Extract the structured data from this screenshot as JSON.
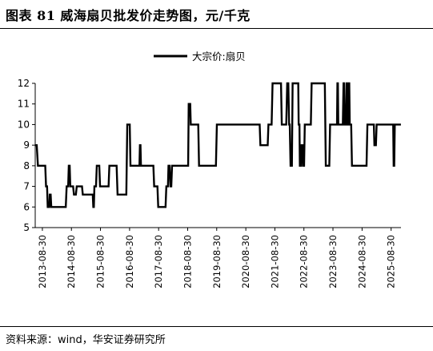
{
  "header": {
    "title": "图表 81 威海扇贝批发价走势图，元/千克"
  },
  "footer": {
    "source": "资料来源：wind，华安证券研究所"
  },
  "chart_data": {
    "type": "line",
    "title": "",
    "xlabel": "",
    "ylabel": "",
    "ylim": [
      5,
      12
    ],
    "yticks": [
      5,
      6,
      7,
      8,
      9,
      10,
      11,
      12
    ],
    "xlim": [
      "2013-06-01",
      "2026-01-01"
    ],
    "xticks": [
      "2013-08-30",
      "2014-08-30",
      "2015-08-30",
      "2016-08-30",
      "2017-08-30",
      "2018-08-30",
      "2019-08-30",
      "2020-08-30",
      "2021-08-30",
      "2022-08-30",
      "2023-08-30",
      "2024-08-30",
      "2025-08-30"
    ],
    "grid": false,
    "legend": {
      "position": "top-center"
    },
    "series": [
      {
        "name": "大宗价:扇贝",
        "color": "#000000",
        "points": [
          [
            "2013-06-01",
            9.0
          ],
          [
            "2013-06-20",
            9.0
          ],
          [
            "2013-07-05",
            8.0
          ],
          [
            "2013-10-05",
            8.0
          ],
          [
            "2013-10-15",
            7.0
          ],
          [
            "2013-10-28",
            7.0
          ],
          [
            "2013-11-05",
            6.0
          ],
          [
            "2013-11-25",
            6.0
          ],
          [
            "2013-12-01",
            6.6
          ],
          [
            "2013-12-12",
            6.6
          ],
          [
            "2013-12-20",
            6.0
          ],
          [
            "2014-06-20",
            6.0
          ],
          [
            "2014-07-01",
            7.0
          ],
          [
            "2014-07-20",
            7.0
          ],
          [
            "2014-07-28",
            8.0
          ],
          [
            "2014-08-08",
            8.0
          ],
          [
            "2014-08-16",
            7.0
          ],
          [
            "2014-09-20",
            7.0
          ],
          [
            "2014-10-01",
            6.6
          ],
          [
            "2014-10-25",
            6.6
          ],
          [
            "2014-11-05",
            7.0
          ],
          [
            "2015-01-10",
            7.0
          ],
          [
            "2015-01-20",
            6.6
          ],
          [
            "2015-05-25",
            6.6
          ],
          [
            "2015-06-01",
            6.0
          ],
          [
            "2015-06-08",
            6.0
          ],
          [
            "2015-06-15",
            7.0
          ],
          [
            "2015-07-05",
            7.0
          ],
          [
            "2015-07-15",
            8.0
          ],
          [
            "2015-08-15",
            8.0
          ],
          [
            "2015-08-25",
            7.0
          ],
          [
            "2015-12-10",
            7.0
          ],
          [
            "2015-12-20",
            8.0
          ],
          [
            "2016-03-20",
            8.0
          ],
          [
            "2016-04-01",
            6.6
          ],
          [
            "2016-07-20",
            6.6
          ],
          [
            "2016-08-01",
            10.0
          ],
          [
            "2016-09-01",
            10.0
          ],
          [
            "2016-09-10",
            8.0
          ],
          [
            "2017-01-01",
            8.0
          ],
          [
            "2017-01-07",
            9.0
          ],
          [
            "2017-01-14",
            9.0
          ],
          [
            "2017-01-20",
            8.0
          ],
          [
            "2017-06-25",
            8.0
          ],
          [
            "2017-07-05",
            7.0
          ],
          [
            "2017-08-15",
            7.0
          ],
          [
            "2017-08-25",
            6.0
          ],
          [
            "2017-11-25",
            6.0
          ],
          [
            "2017-12-05",
            7.0
          ],
          [
            "2017-12-25",
            7.0
          ],
          [
            "2018-01-01",
            8.0
          ],
          [
            "2018-01-15",
            8.0
          ],
          [
            "2018-01-25",
            7.0
          ],
          [
            "2018-02-05",
            7.0
          ],
          [
            "2018-02-15",
            8.0
          ],
          [
            "2018-09-05",
            8.0
          ],
          [
            "2018-09-12",
            11.0
          ],
          [
            "2018-10-01",
            11.0
          ],
          [
            "2018-10-08",
            10.0
          ],
          [
            "2019-01-10",
            10.0
          ],
          [
            "2019-01-20",
            8.0
          ],
          [
            "2019-08-20",
            8.0
          ],
          [
            "2019-09-01",
            10.0
          ],
          [
            "2021-02-20",
            10.0
          ],
          [
            "2021-03-01",
            9.0
          ],
          [
            "2021-06-01",
            9.0
          ],
          [
            "2021-06-10",
            10.0
          ],
          [
            "2021-07-20",
            10.0
          ],
          [
            "2021-08-01",
            12.0
          ],
          [
            "2021-11-15",
            12.0
          ],
          [
            "2021-11-25",
            10.0
          ],
          [
            "2022-01-20",
            10.0
          ],
          [
            "2022-02-01",
            12.0
          ],
          [
            "2022-02-15",
            12.0
          ],
          [
            "2022-02-25",
            10.0
          ],
          [
            "2022-03-05",
            10.0
          ],
          [
            "2022-03-15",
            8.0
          ],
          [
            "2022-04-01",
            8.0
          ],
          [
            "2022-04-10",
            12.0
          ],
          [
            "2022-06-20",
            12.0
          ],
          [
            "2022-06-25",
            10.0
          ],
          [
            "2022-07-05",
            10.0
          ],
          [
            "2022-07-10",
            8.0
          ],
          [
            "2022-07-25",
            8.0
          ],
          [
            "2022-08-01",
            9.0
          ],
          [
            "2022-08-15",
            9.0
          ],
          [
            "2022-08-20",
            8.0
          ],
          [
            "2022-09-01",
            8.0
          ],
          [
            "2022-09-10",
            10.0
          ],
          [
            "2022-11-25",
            10.0
          ],
          [
            "2022-12-05",
            12.0
          ],
          [
            "2023-05-20",
            12.0
          ],
          [
            "2023-06-01",
            8.0
          ],
          [
            "2023-07-15",
            8.0
          ],
          [
            "2023-07-25",
            10.0
          ],
          [
            "2023-10-20",
            10.0
          ],
          [
            "2023-10-25",
            12.0
          ],
          [
            "2023-10-31",
            12.0
          ],
          [
            "2023-11-05",
            10.0
          ],
          [
            "2024-01-01",
            10.0
          ],
          [
            "2024-01-10",
            12.0
          ],
          [
            "2024-01-18",
            12.0
          ],
          [
            "2024-01-25",
            10.0
          ],
          [
            "2024-02-12",
            10.0
          ],
          [
            "2024-02-18",
            12.0
          ],
          [
            "2024-02-24",
            12.0
          ],
          [
            "2024-03-01",
            10.0
          ],
          [
            "2024-03-10",
            10.0
          ],
          [
            "2024-03-16",
            12.0
          ],
          [
            "2024-03-22",
            12.0
          ],
          [
            "2024-03-28",
            10.0
          ],
          [
            "2024-04-15",
            10.0
          ],
          [
            "2024-04-25",
            8.0
          ],
          [
            "2024-10-25",
            8.0
          ],
          [
            "2024-11-05",
            10.0
          ],
          [
            "2025-01-25",
            10.0
          ],
          [
            "2025-02-01",
            9.0
          ],
          [
            "2025-02-20",
            9.0
          ],
          [
            "2025-03-01",
            10.0
          ],
          [
            "2025-09-25",
            10.0
          ],
          [
            "2025-10-01",
            8.0
          ],
          [
            "2025-10-08",
            8.0
          ],
          [
            "2025-10-15",
            10.0
          ],
          [
            "2025-12-31",
            10.0
          ]
        ]
      }
    ]
  }
}
